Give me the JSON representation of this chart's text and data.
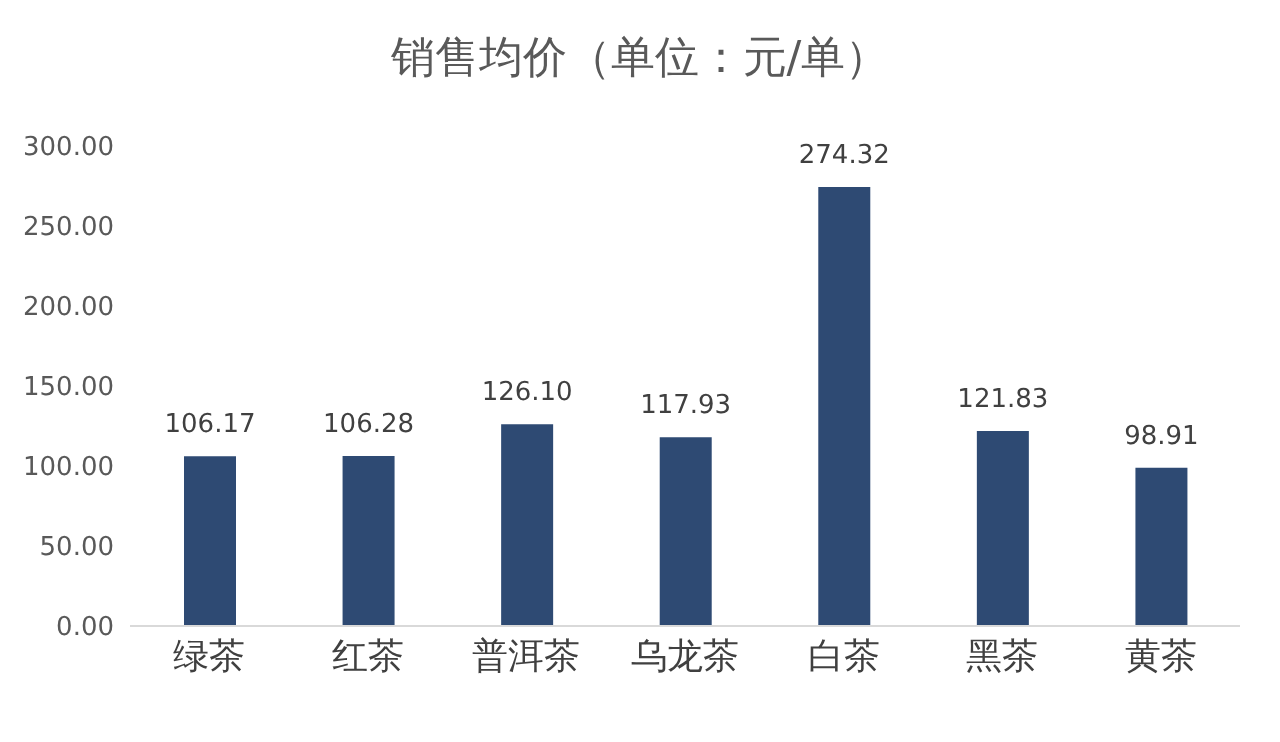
{
  "chart_data": {
    "type": "bar",
    "title": "销售均价（单位：元/单）",
    "categories": [
      "绿茶",
      "红茶",
      "普洱茶",
      "乌龙茶",
      "白茶",
      "黑茶",
      "黄茶"
    ],
    "values": [
      106.17,
      106.28,
      126.1,
      117.93,
      274.32,
      121.83,
      98.91
    ],
    "color": "#2e4a73",
    "ylim": [
      0,
      300
    ],
    "yticks": [
      {
        "value": 0,
        "label": "0.00"
      },
      {
        "value": 50,
        "label": "50.00"
      },
      {
        "value": 100,
        "label": "100.00"
      },
      {
        "value": 150,
        "label": "150.00"
      },
      {
        "value": 200,
        "label": "200.00"
      },
      {
        "value": 250,
        "label": "250.00"
      },
      {
        "value": 300,
        "label": "300.00"
      }
    ],
    "value_labels": [
      "106.17",
      "106.28",
      "126.10",
      "117.93",
      "274.32",
      "121.83",
      "98.91"
    ],
    "grid": false,
    "legend": false
  }
}
